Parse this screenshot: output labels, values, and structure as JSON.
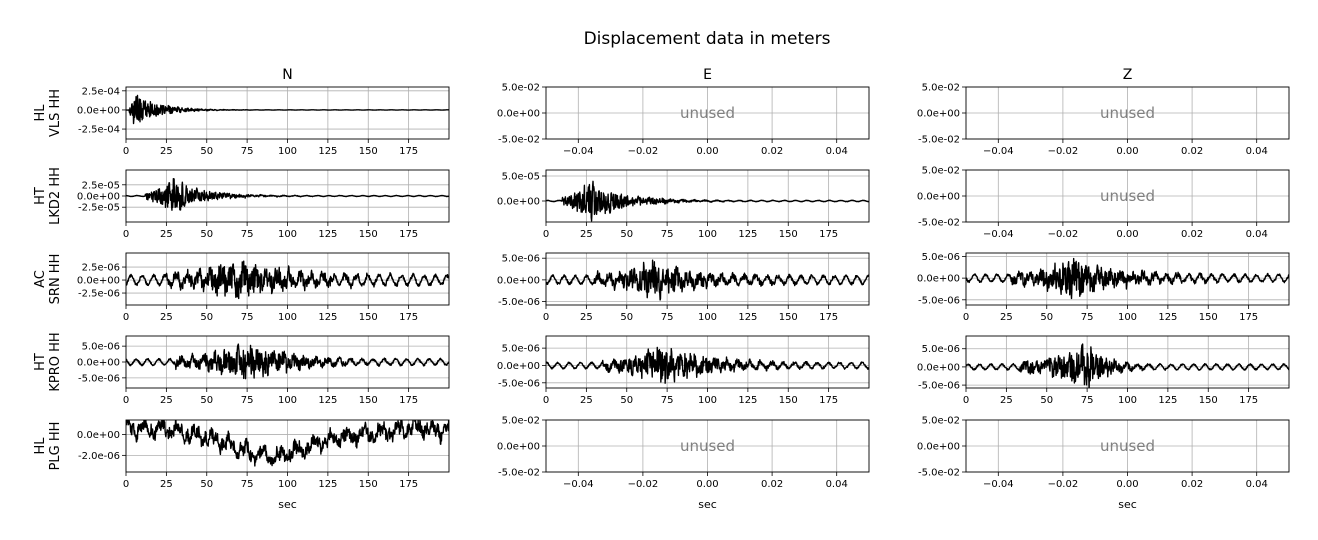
{
  "figure": {
    "title": "Displacement data in meters",
    "column_titles": [
      "N",
      "E",
      "Z"
    ],
    "row_labels": [
      [
        "HL",
        "VLS HH"
      ],
      [
        "HT",
        "LKD2 HH"
      ],
      [
        "AC",
        "SRN HH"
      ],
      [
        "HT",
        "KPRO HH"
      ],
      [
        "HL",
        "PLG HH"
      ]
    ],
    "unused_text": "unused",
    "xlabel": "sec",
    "line_color": "#000000",
    "grid_color": "#b0b0b0",
    "unused_text_color": "#808080"
  },
  "chart_data": [
    {
      "type": "line",
      "row": 0,
      "col": 0,
      "station": "HL VLS HH",
      "component": "N",
      "unused": false,
      "xlim": [
        0,
        200
      ],
      "ylim": [
        -0.00038,
        0.0003
      ],
      "xticks": [
        0,
        25,
        50,
        75,
        100,
        125,
        150,
        175
      ],
      "xtick_labels": [
        "0",
        "25",
        "50",
        "75",
        "100",
        "125",
        "150",
        "175"
      ],
      "yticks": [
        0.00025,
        0,
        -0.00025
      ],
      "ytick_labels": [
        "2.5e-04",
        "0.0e+00",
        "-2.5e-04"
      ],
      "grid": true,
      "signal": {
        "duration": 200,
        "onset": 2,
        "peak_time": 5,
        "peak_amp": 0.00032,
        "decay": 14,
        "noise": 1.5e-06
      }
    },
    {
      "type": "line",
      "row": 0,
      "col": 1,
      "station": "HL VLS HH",
      "component": "E",
      "unused": true,
      "xlim": [
        -0.05,
        0.05
      ],
      "ylim": [
        -0.05,
        0.05
      ],
      "xticks": [
        -0.04,
        -0.02,
        0,
        0.02,
        0.04
      ],
      "xtick_labels": [
        "−0.04",
        "−0.02",
        "0.00",
        "0.02",
        "0.04"
      ],
      "yticks": [
        0.05,
        0,
        -0.05
      ],
      "ytick_labels": [
        "5.0e-02",
        "0.0e+00",
        "-5.0e-02"
      ],
      "grid": true
    },
    {
      "type": "line",
      "row": 0,
      "col": 2,
      "station": "HL VLS HH",
      "component": "Z",
      "unused": true,
      "xlim": [
        -0.05,
        0.05
      ],
      "ylim": [
        -0.05,
        0.05
      ],
      "xticks": [
        -0.04,
        -0.02,
        0,
        0.02,
        0.04
      ],
      "xtick_labels": [
        "−0.04",
        "−0.02",
        "0.00",
        "0.02",
        "0.04"
      ],
      "yticks": [
        0.05,
        0,
        -0.05
      ],
      "ytick_labels": [
        "5.0e-02",
        "0.0e+00",
        "-5.0e-02"
      ],
      "grid": true
    },
    {
      "type": "line",
      "row": 1,
      "col": 0,
      "station": "HT LKD2 HH",
      "component": "N",
      "unused": false,
      "xlim": [
        0,
        200
      ],
      "ylim": [
        -5.8e-05,
        5.8e-05
      ],
      "xticks": [
        0,
        25,
        50,
        75,
        100,
        125,
        150,
        175
      ],
      "xtick_labels": [
        "0",
        "25",
        "50",
        "75",
        "100",
        "125",
        "150",
        "175"
      ],
      "yticks": [
        2.5e-05,
        0,
        -2.5e-05
      ],
      "ytick_labels": [
        "2.5e-05",
        "0.0e+00",
        "-2.5e-05"
      ],
      "grid": true,
      "signal": {
        "duration": 200,
        "onset": 12,
        "peak_time": 29,
        "peak_amp": 5.2e-05,
        "decay": 18,
        "noise": 1e-06
      }
    },
    {
      "type": "line",
      "row": 1,
      "col": 1,
      "station": "HT LKD2 HH",
      "component": "E",
      "unused": false,
      "xlim": [
        0,
        200
      ],
      "ylim": [
        -4.2e-05,
        6.2e-05
      ],
      "xticks": [
        0,
        25,
        50,
        75,
        100,
        125,
        150,
        175
      ],
      "xtick_labels": [
        "0",
        "25",
        "50",
        "75",
        "100",
        "125",
        "150",
        "175"
      ],
      "yticks": [
        5e-05,
        0
      ],
      "ytick_labels": [
        "5.0e-05",
        "0.0e+00"
      ],
      "grid": true,
      "signal": {
        "duration": 200,
        "onset": 10,
        "peak_time": 28,
        "peak_amp": 5.6e-05,
        "decay": 20,
        "noise": 1.2e-06
      }
    },
    {
      "type": "line",
      "row": 1,
      "col": 2,
      "station": "HT LKD2 HH",
      "component": "Z",
      "unused": true,
      "xlim": [
        -0.05,
        0.05
      ],
      "ylim": [
        -0.05,
        0.05
      ],
      "xticks": [
        -0.04,
        -0.02,
        0,
        0.02,
        0.04
      ],
      "xtick_labels": [
        "−0.04",
        "−0.02",
        "0.00",
        "0.02",
        "0.04"
      ],
      "yticks": [
        0.05,
        0,
        -0.05
      ],
      "ytick_labels": [
        "5.0e-02",
        "0.0e+00",
        "-5.0e-02"
      ],
      "grid": true
    },
    {
      "type": "line",
      "row": 2,
      "col": 0,
      "station": "AC SRN HH",
      "component": "N",
      "unused": false,
      "xlim": [
        0,
        200
      ],
      "ylim": [
        -4.8e-06,
        5.2e-06
      ],
      "xticks": [
        0,
        25,
        50,
        75,
        100,
        125,
        150,
        175
      ],
      "xtick_labels": [
        "0",
        "25",
        "50",
        "75",
        "100",
        "125",
        "150",
        "175"
      ],
      "yticks": [
        2.5e-06,
        0,
        -2.5e-06
      ],
      "ytick_labels": [
        "2.5e-06",
        "0.0e+00",
        "-2.5e-06"
      ],
      "grid": true,
      "signal": {
        "duration": 200,
        "onset": 25,
        "peak_time": 68,
        "peak_amp": 4.6e-06,
        "decay": 38,
        "noise": 9e-07
      }
    },
    {
      "type": "line",
      "row": 2,
      "col": 1,
      "station": "AC SRN HH",
      "component": "E",
      "unused": false,
      "xlim": [
        0,
        200
      ],
      "ylim": [
        -5.8e-06,
        6.2e-06
      ],
      "xticks": [
        0,
        25,
        50,
        75,
        100,
        125,
        150,
        175
      ],
      "xtick_labels": [
        "0",
        "25",
        "50",
        "75",
        "100",
        "125",
        "150",
        "175"
      ],
      "yticks": [
        5e-06,
        0,
        -5e-06
      ],
      "ytick_labels": [
        "5.0e-06",
        "0.0e+00",
        "-5.0e-06"
      ],
      "grid": true,
      "signal": {
        "duration": 200,
        "onset": 30,
        "peak_time": 65,
        "peak_amp": 5.2e-06,
        "decay": 35,
        "noise": 9e-07
      }
    },
    {
      "type": "line",
      "row": 2,
      "col": 2,
      "station": "AC SRN HH",
      "component": "Z",
      "unused": false,
      "xlim": [
        0,
        200
      ],
      "ylim": [
        -6.2e-06,
        5.8e-06
      ],
      "xticks": [
        0,
        25,
        50,
        75,
        100,
        125,
        150,
        175
      ],
      "xtick_labels": [
        "0",
        "25",
        "50",
        "75",
        "100",
        "125",
        "150",
        "175"
      ],
      "yticks": [
        5e-06,
        0,
        -5e-06
      ],
      "ytick_labels": [
        "5.0e-06",
        "0.0e+00",
        "-5.0e-06"
      ],
      "grid": true,
      "signal": {
        "duration": 200,
        "onset": 28,
        "peak_time": 66,
        "peak_amp": 5.6e-06,
        "decay": 33,
        "noise": 8e-07
      }
    },
    {
      "type": "line",
      "row": 3,
      "col": 0,
      "station": "HT KPRO HH",
      "component": "N",
      "unused": false,
      "xlim": [
        0,
        200
      ],
      "ylim": [
        -8.2e-06,
        8.2e-06
      ],
      "xticks": [
        0,
        25,
        50,
        75,
        100,
        125,
        150,
        175
      ],
      "xtick_labels": [
        "0",
        "25",
        "50",
        "75",
        "100",
        "125",
        "150",
        "175"
      ],
      "yticks": [
        5e-06,
        0,
        -5e-06
      ],
      "ytick_labels": [
        "5.0e-06",
        "0.0e+00",
        "-5.0e-06"
      ],
      "grid": true,
      "signal": {
        "duration": 200,
        "onset": 30,
        "peak_time": 75,
        "peak_amp": 7.5e-06,
        "decay": 30,
        "noise": 9e-07
      }
    },
    {
      "type": "line",
      "row": 3,
      "col": 1,
      "station": "HT KPRO HH",
      "component": "E",
      "unused": false,
      "xlim": [
        0,
        200
      ],
      "ylim": [
        -6.5e-06,
        8.5e-06
      ],
      "xticks": [
        0,
        25,
        50,
        75,
        100,
        125,
        150,
        175
      ],
      "xtick_labels": [
        "0",
        "25",
        "50",
        "75",
        "100",
        "125",
        "150",
        "175"
      ],
      "yticks": [
        5e-06,
        0,
        -5e-06
      ],
      "ytick_labels": [
        "5.0e-06",
        "0.0e+00",
        "-5.0e-06"
      ],
      "grid": true,
      "signal": {
        "duration": 200,
        "onset": 35,
        "peak_time": 72,
        "peak_amp": 7.2e-06,
        "decay": 30,
        "noise": 8e-07
      }
    },
    {
      "type": "line",
      "row": 3,
      "col": 2,
      "station": "HT KPRO HH",
      "component": "Z",
      "unused": false,
      "xlim": [
        0,
        200
      ],
      "ylim": [
        -5.8e-06,
        8.5e-06
      ],
      "xticks": [
        0,
        25,
        50,
        75,
        100,
        125,
        150,
        175
      ],
      "xtick_labels": [
        "0",
        "25",
        "50",
        "75",
        "100",
        "125",
        "150",
        "175"
      ],
      "yticks": [
        5e-06,
        0,
        -5e-06
      ],
      "ytick_labels": [
        "5.0e-06",
        "0.0e+00",
        "-5.0e-06"
      ],
      "grid": true,
      "signal": {
        "duration": 200,
        "onset": 33,
        "peak_time": 76,
        "peak_amp": 7.8e-06,
        "decay": 12,
        "noise": 7e-07
      }
    },
    {
      "type": "line",
      "row": 4,
      "col": 0,
      "station": "HL PLG HH",
      "component": "N",
      "unused": false,
      "xlim": [
        0,
        200
      ],
      "ylim": [
        -3.6e-06,
        1.4e-06
      ],
      "xticks": [
        0,
        25,
        50,
        75,
        100,
        125,
        150,
        175
      ],
      "xtick_labels": [
        "0",
        "25",
        "50",
        "75",
        "100",
        "125",
        "150",
        "175"
      ],
      "yticks": [
        0,
        -2e-06
      ],
      "ytick_labels": [
        "0.0e+00",
        "-2.0e-06"
      ],
      "grid": true,
      "signal": {
        "duration": 200,
        "mode": "longperiod",
        "noise": 3e-07
      }
    },
    {
      "type": "line",
      "row": 4,
      "col": 1,
      "station": "HL PLG HH",
      "component": "E",
      "unused": true,
      "xlim": [
        -0.05,
        0.05
      ],
      "ylim": [
        -0.05,
        0.05
      ],
      "xticks": [
        -0.04,
        -0.02,
        0,
        0.02,
        0.04
      ],
      "xtick_labels": [
        "−0.04",
        "−0.02",
        "0.00",
        "0.02",
        "0.04"
      ],
      "yticks": [
        0.05,
        0,
        -0.05
      ],
      "ytick_labels": [
        "5.0e-02",
        "0.0e+00",
        "-5.0e-02"
      ],
      "grid": true
    },
    {
      "type": "line",
      "row": 4,
      "col": 2,
      "station": "HL PLG HH",
      "component": "Z",
      "unused": true,
      "xlim": [
        -0.05,
        0.05
      ],
      "ylim": [
        -0.05,
        0.05
      ],
      "xticks": [
        -0.04,
        -0.02,
        0,
        0.02,
        0.04
      ],
      "xtick_labels": [
        "−0.04",
        "−0.02",
        "0.00",
        "0.02",
        "0.04"
      ],
      "yticks": [
        0.05,
        0,
        -0.05
      ],
      "ytick_labels": [
        "5.0e-02",
        "0.0e+00",
        "-5.0e-02"
      ],
      "grid": true
    }
  ]
}
